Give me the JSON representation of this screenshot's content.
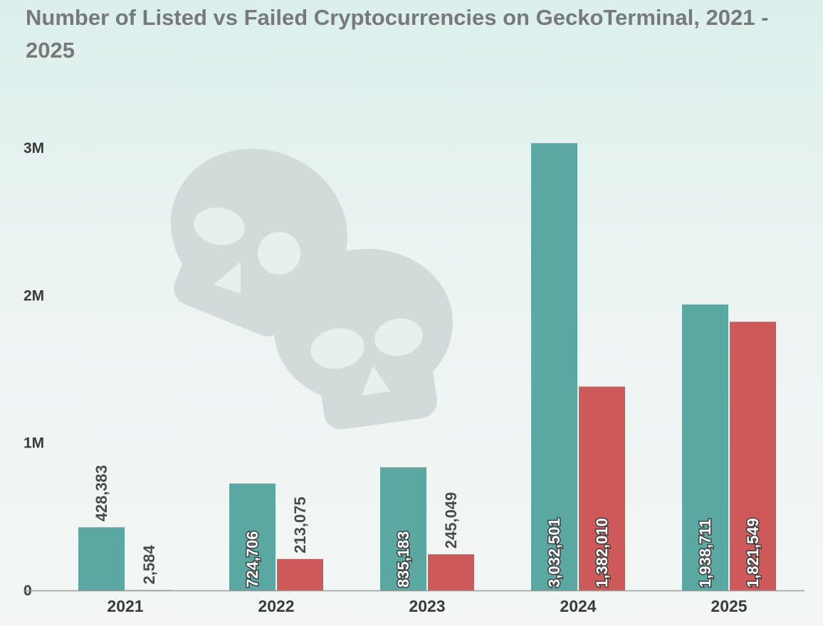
{
  "chart_data": {
    "type": "bar",
    "title": "Number of Listed vs Failed Cryptocurrencies on GeckoTerminal, 2021 - 2025",
    "categories": [
      "2021",
      "2022",
      "2023",
      "2024",
      "2025"
    ],
    "series": [
      {
        "name": "",
        "color": "#5ba8a2",
        "values": [
          428383,
          724706,
          835183,
          3032501,
          1938711
        ],
        "labels": [
          "428,383",
          "724,706",
          "835,183",
          "3,032,501",
          "1,938,711"
        ]
      },
      {
        "name": "",
        "color": "#cd5a58",
        "values": [
          2584,
          213075,
          245049,
          1382010,
          1821549
        ],
        "labels": [
          "2,584",
          "213,075",
          "245,049",
          "1,382,010",
          "1,821,549"
        ]
      }
    ],
    "yticks": [
      {
        "value": 0,
        "label": "0"
      },
      {
        "value": 1000000,
        "label": "1M"
      },
      {
        "value": 2000000,
        "label": "2M"
      },
      {
        "value": 3000000,
        "label": "3M"
      }
    ],
    "ylim": [
      0,
      3000000
    ],
    "xlabel": "",
    "ylabel": "",
    "grid": false,
    "legend": "none",
    "decoration": "skull-icon"
  }
}
